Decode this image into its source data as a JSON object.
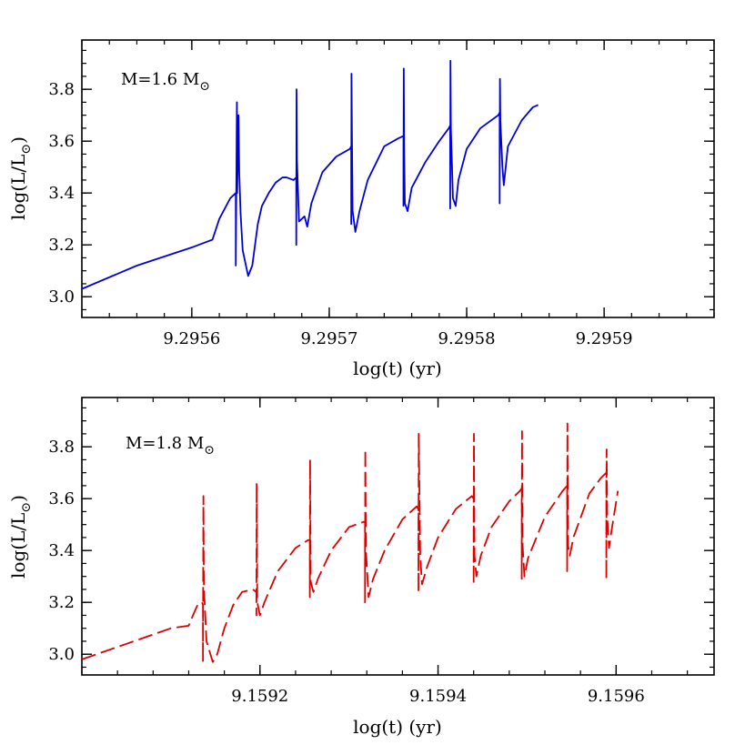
{
  "chart_data": [
    {
      "type": "line",
      "annotation": {
        "text": "M=1.6 M",
        "subscript": "⊙"
      },
      "xlabel": "log(t) (yr)",
      "ylabel": {
        "base": "log(L/L",
        "subscript": "⊙",
        "close": ")"
      },
      "xlim": [
        9.29552,
        9.29598
      ],
      "ylim": [
        2.92,
        3.99
      ],
      "xticks": [
        9.2956,
        9.2957,
        9.2958,
        9.2959
      ],
      "xtick_labels": [
        "9.2956",
        "9.2957",
        "9.2958",
        "9.2959"
      ],
      "yticks": [
        3.0,
        3.2,
        3.4,
        3.6,
        3.8
      ],
      "ytick_labels": [
        "3.0",
        "3.2",
        "3.4",
        "3.6",
        "3.8"
      ],
      "series": [
        {
          "color": "#0000dd",
          "dash": "solid",
          "x": [
            9.29552,
            9.29556,
            9.2956,
            9.29561,
            9.295615,
            9.29562,
            9.295628,
            9.295632,
            9.295632,
            9.2956328,
            9.295633,
            9.295634,
            9.2956345,
            9.2956355,
            9.295637,
            9.295641,
            9.295644,
            9.295646,
            9.295648,
            9.295651,
            9.295656,
            9.295661,
            9.295666,
            9.295669,
            9.295674,
            9.295676,
            9.295676,
            9.2956762,
            9.2956765,
            9.295678,
            9.295682,
            9.295684,
            9.295687,
            9.295695,
            9.295705,
            9.295715,
            9.295716,
            9.295716,
            9.2957162,
            9.2957165,
            9.295717,
            9.295719,
            9.295722,
            9.295728,
            9.29574,
            9.29575,
            9.295754,
            9.295754,
            9.2957542,
            9.2957545,
            9.295755,
            9.295757,
            9.29576,
            9.29577,
            9.29578,
            9.295787,
            9.295788,
            9.295788,
            9.2957882,
            9.2957885,
            9.29579,
            9.295792,
            9.295794,
            9.2958,
            9.29581,
            9.295823,
            9.295824,
            9.295824,
            9.2958242,
            9.2958245,
            9.295826,
            9.295827,
            9.29583,
            9.29584,
            9.295848,
            9.295852
          ],
          "y": [
            3.03,
            3.12,
            3.19,
            3.21,
            3.22,
            3.3,
            3.38,
            3.4,
            3.12,
            3.75,
            3.4,
            3.7,
            3.48,
            3.32,
            3.18,
            3.08,
            3.12,
            3.2,
            3.28,
            3.35,
            3.4,
            3.44,
            3.46,
            3.46,
            3.45,
            3.46,
            3.2,
            3.8,
            3.53,
            3.29,
            3.31,
            3.27,
            3.36,
            3.48,
            3.54,
            3.57,
            3.58,
            3.28,
            3.86,
            3.63,
            3.33,
            3.25,
            3.33,
            3.45,
            3.58,
            3.61,
            3.62,
            3.35,
            3.88,
            3.58,
            3.36,
            3.33,
            3.42,
            3.52,
            3.6,
            3.65,
            3.66,
            3.34,
            3.91,
            3.65,
            3.38,
            3.35,
            3.45,
            3.57,
            3.65,
            3.7,
            3.71,
            3.36,
            3.84,
            3.68,
            3.5,
            3.43,
            3.58,
            3.68,
            3.73,
            3.74
          ]
        }
      ]
    },
    {
      "type": "line",
      "annotation": {
        "text": "M=1.8 M",
        "subscript": "⊙"
      },
      "xlabel": "log(t) (yr)",
      "ylabel": {
        "base": "log(L/L",
        "subscript": "⊙",
        "close": ")"
      },
      "xlim": [
        9.159,
        9.15971
      ],
      "ylim": [
        2.92,
        3.99
      ],
      "xticks": [
        9.1592,
        9.1594,
        9.1596
      ],
      "xtick_labels": [
        "9.1592",
        "9.1594",
        "9.1596"
      ],
      "yticks": [
        3.0,
        3.2,
        3.4,
        3.6,
        3.8
      ],
      "ytick_labels": [
        "3.0",
        "3.2",
        "3.4",
        "3.6",
        "3.8"
      ],
      "series": [
        {
          "color": "#dd0000",
          "dash": "dashed",
          "x": [
            9.159,
            9.15905,
            9.1591,
            9.15912,
            9.159126,
            9.15913,
            9.159135,
            9.159136,
            9.159136,
            9.1591365,
            9.159137,
            9.15914,
            9.159147,
            9.159152,
            9.15916,
            9.15917,
            9.15918,
            9.159192,
            9.159196,
            9.159196,
            9.1591963,
            9.159197,
            9.1592,
            9.159205,
            9.15922,
            9.15924,
            9.159254,
            9.159256,
            9.159256,
            9.1592563,
            9.159257,
            9.15926,
            9.159265,
            9.15928,
            9.1593,
            9.159316,
            9.159318,
            9.159318,
            9.1593183,
            9.159319,
            9.159322,
            9.159327,
            9.15934,
            9.15936,
            9.159376,
            9.159378,
            9.159378,
            9.1593783,
            9.15938,
            9.159382,
            9.159388,
            9.1594,
            9.15942,
            9.159438,
            9.15944,
            9.15944,
            9.1594403,
            9.159441,
            9.159443,
            9.159448,
            9.15946,
            9.15948,
            9.159492,
            9.159494,
            9.159494,
            9.1594943,
            9.159495,
            9.159497,
            9.159501,
            9.15952,
            9.15954,
            9.159545,
            9.159545,
            9.1595453,
            9.159546,
            9.159548,
            9.159552,
            9.15957,
            9.159583,
            9.159589,
            9.159589,
            9.1595893,
            9.15959,
            9.159592,
            9.159595,
            9.159602
          ],
          "y": [
            2.98,
            3.04,
            3.1,
            3.11,
            3.16,
            3.19,
            3.2,
            3.19,
            2.97,
            3.61,
            3.26,
            3.05,
            2.97,
            3.0,
            3.1,
            3.19,
            3.24,
            3.25,
            3.24,
            3.15,
            3.66,
            3.2,
            3.15,
            3.2,
            3.32,
            3.41,
            3.44,
            3.44,
            3.22,
            3.75,
            3.28,
            3.24,
            3.29,
            3.4,
            3.49,
            3.51,
            3.51,
            3.2,
            3.79,
            3.4,
            3.22,
            3.29,
            3.4,
            3.52,
            3.57,
            3.56,
            3.24,
            3.85,
            3.38,
            3.27,
            3.34,
            3.45,
            3.56,
            3.61,
            3.6,
            3.27,
            3.85,
            3.38,
            3.3,
            3.38,
            3.49,
            3.59,
            3.63,
            3.64,
            3.29,
            3.86,
            3.42,
            3.3,
            3.37,
            3.53,
            3.63,
            3.65,
            3.32,
            3.89,
            3.42,
            3.38,
            3.45,
            3.62,
            3.68,
            3.7,
            3.29,
            3.79,
            3.53,
            3.41,
            3.48,
            3.63
          ]
        }
      ]
    }
  ]
}
